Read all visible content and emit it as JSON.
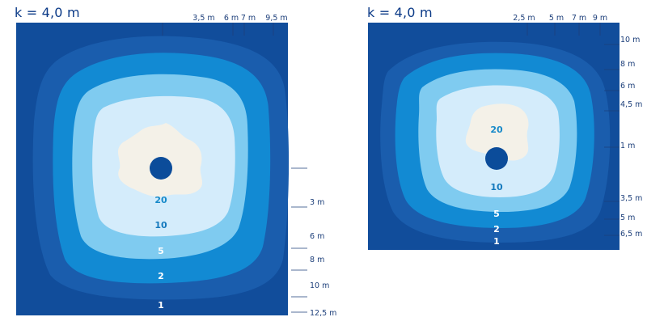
{
  "colors": {
    "zone1": "#114d9b",
    "zone2": "#1a5dad",
    "zone5": "#128ad3",
    "zone10": "#7fcbf0",
    "zone20": "#d4ecfb",
    "core": "#f4f1e8",
    "hole": "#0b4c9a",
    "tick": "#1d3f7a"
  },
  "left_panel": {
    "title": "k = 4,0 m",
    "top_ticks": [
      "3,5 m",
      "6 m",
      "7 m",
      "9,5 m"
    ],
    "right_ticks": [
      "3 m",
      "6 m",
      "8 m",
      "10 m",
      "12,5 m"
    ],
    "zone_labels": [
      "20",
      "10",
      "5",
      "2",
      "1"
    ]
  },
  "right_panel": {
    "title": "k = 4,0 m",
    "top_ticks": [
      "2,5 m",
      "5 m",
      "7 m",
      "9 m"
    ],
    "right_ticks": [
      "10 m",
      "8 m",
      "6 m",
      "4,5 m",
      "1 m",
      "3,5 m",
      "5 m",
      "6,5 m"
    ],
    "zone_labels": [
      "20",
      "10",
      "5",
      "2",
      "1"
    ]
  }
}
